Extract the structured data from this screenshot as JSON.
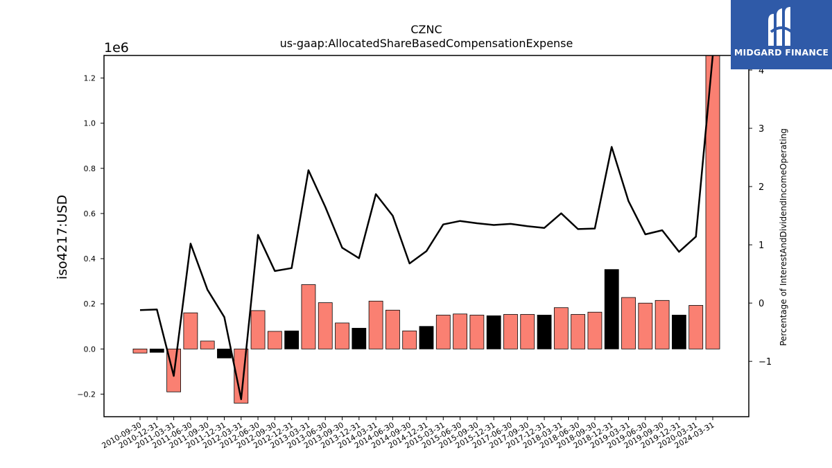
{
  "chart_data": {
    "type": "bar",
    "title": "CZNC",
    "subtitle": "us-gaap:AllocatedShareBasedCompensationExpense",
    "ylabel": "iso4217:USD",
    "y_offset_label": "1e6",
    "y2label": "Percentage of InterestAndDividendIncomeOperating",
    "ylim": [
      -0.3,
      1.3
    ],
    "y2lim": [
      -1.95,
      4.25
    ],
    "yticks": [
      "−0.2",
      "0.0",
      "0.2",
      "0.4",
      "0.6",
      "0.8",
      "1.0",
      "1.2"
    ],
    "y2ticks": [
      "−1",
      "0",
      "1",
      "2",
      "3",
      "4"
    ],
    "categories": [
      "2010-09-30",
      "2010-12-31",
      "2011-03-31",
      "2011-06-30",
      "2011-09-30",
      "2011-12-31",
      "2012-03-31",
      "2012-06-30",
      "2012-09-30",
      "2012-12-31",
      "2013-03-31",
      "2013-06-30",
      "2013-09-30",
      "2013-12-31",
      "2014-03-31",
      "2014-06-30",
      "2014-09-30",
      "2014-12-31",
      "2015-03-31",
      "2015-06-30",
      "2015-09-30",
      "2015-12-31",
      "2017-06-30",
      "2017-09-30",
      "2017-12-31",
      "2018-03-31",
      "2018-06-30",
      "2018-09-30",
      "2018-12-31",
      "2019-03-31",
      "2019-06-30",
      "2019-09-30",
      "2019-12-31",
      "2020-03-31",
      "2024-03-31"
    ],
    "series": [
      {
        "values": [
          -0.018,
          -0.015,
          -0.19,
          0.16,
          0.035,
          -0.04,
          -0.24,
          0.17,
          0.078,
          0.08,
          0.285,
          0.205,
          0.115,
          0.092,
          0.212,
          0.172,
          0.08,
          0.1,
          0.15,
          0.155,
          0.15,
          0.147,
          0.153,
          0.153,
          0.15,
          0.183,
          0.153,
          0.163,
          0.352,
          0.228,
          0.203,
          0.215,
          0.15,
          0.193,
          1.3
        ],
        "colors": [
          "#fa8072",
          "#000000",
          "#fa8072",
          "#fa8072",
          "#fa8072",
          "#000000",
          "#fa8072",
          "#fa8072",
          "#fa8072",
          "#000000",
          "#fa8072",
          "#fa8072",
          "#fa8072",
          "#000000",
          "#fa8072",
          "#fa8072",
          "#fa8072",
          "#000000",
          "#fa8072",
          "#fa8072",
          "#fa8072",
          "#000000",
          "#fa8072",
          "#fa8072",
          "#000000",
          "#fa8072",
          "#fa8072",
          "#fa8072",
          "#000000",
          "#fa8072",
          "#fa8072",
          "#fa8072",
          "#000000",
          "#fa8072",
          "#fa8072"
        ]
      },
      {
        "type": "line",
        "axis": "right",
        "color": "#000000",
        "values": [
          -0.12,
          -0.11,
          -1.25,
          1.02,
          0.23,
          -0.24,
          -1.65,
          1.17,
          0.55,
          0.6,
          2.28,
          1.65,
          0.95,
          0.77,
          1.87,
          1.5,
          0.68,
          0.89,
          1.35,
          1.41,
          1.37,
          1.34,
          1.36,
          1.32,
          1.29,
          1.54,
          1.27,
          1.28,
          2.68,
          1.75,
          1.18,
          1.25,
          0.88,
          1.14,
          4.25
        ]
      }
    ],
    "grid": false
  },
  "logo": {
    "text": "MIDGARD FINANCE"
  }
}
